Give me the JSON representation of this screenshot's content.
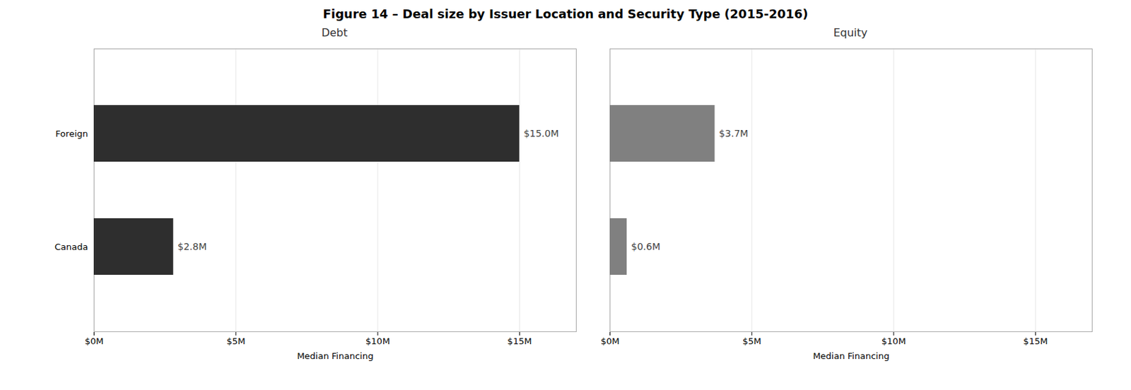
{
  "chart_data": {
    "type": "bar",
    "title": "Figure 14 – Deal size by Issuer Location and Security Type (2015-2016)",
    "orientation": "horizontal",
    "categories": [
      "Canada",
      "Foreign"
    ],
    "series": [
      {
        "name": "Debt",
        "color": "#2e2e2e",
        "values": [
          2.8,
          15.0
        ],
        "value_labels": [
          "$2.8M",
          "$15.0M"
        ]
      },
      {
        "name": "Equity",
        "color": "#808080",
        "values": [
          0.6,
          3.7
        ],
        "value_labels": [
          "$0.6M",
          "$3.7M"
        ]
      }
    ],
    "xlabel": "Median Financing",
    "xlim": [
      0,
      17
    ],
    "xticks": [
      {
        "value": 0,
        "label": "$0M"
      },
      {
        "value": 5,
        "label": "$5M"
      },
      {
        "value": 10,
        "label": "$10M"
      },
      {
        "value": 15,
        "label": "$15M"
      }
    ],
    "grid": true,
    "data_labels": true
  }
}
